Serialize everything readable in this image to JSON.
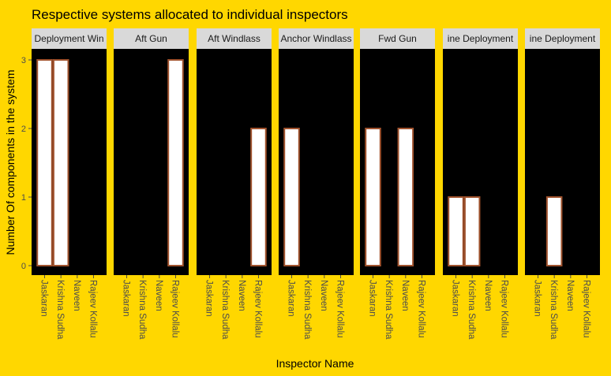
{
  "chart_data": {
    "type": "bar",
    "title": "Respective systems allocated to individual inspectors",
    "xlabel": "Inspector Name",
    "ylabel": "Number Of components in the system",
    "ylim": [
      0,
      3.2
    ],
    "yticks": [
      0,
      1,
      2,
      3
    ],
    "categories": [
      "Jaskaran",
      "Krishna Sudha",
      "Naveen",
      "Rajeev Kollalu"
    ],
    "facets": [
      {
        "label": "Deployment Win",
        "values": [
          3,
          3,
          0,
          0
        ]
      },
      {
        "label": "Aft Gun",
        "values": [
          0,
          0,
          0,
          3
        ]
      },
      {
        "label": "Aft Windlass",
        "values": [
          0,
          0,
          0,
          2
        ]
      },
      {
        "label": "Anchor Windlass",
        "values": [
          2,
          0,
          0,
          0
        ]
      },
      {
        "label": "Fwd Gun",
        "values": [
          2,
          0,
          2,
          0
        ]
      },
      {
        "label": "ine Deployment",
        "values": [
          1,
          1,
          0,
          0
        ]
      },
      {
        "label": "ine Deployment",
        "values": [
          0,
          1,
          0,
          0
        ]
      }
    ],
    "colors": {
      "background": "#FFD700",
      "panel": "#000000",
      "strip": "#D9D9D9",
      "bar_fill": "#FFFFFF",
      "bar_outline": "#A0522D",
      "text": "#000000",
      "axis_text": "#4D4D4D"
    }
  }
}
